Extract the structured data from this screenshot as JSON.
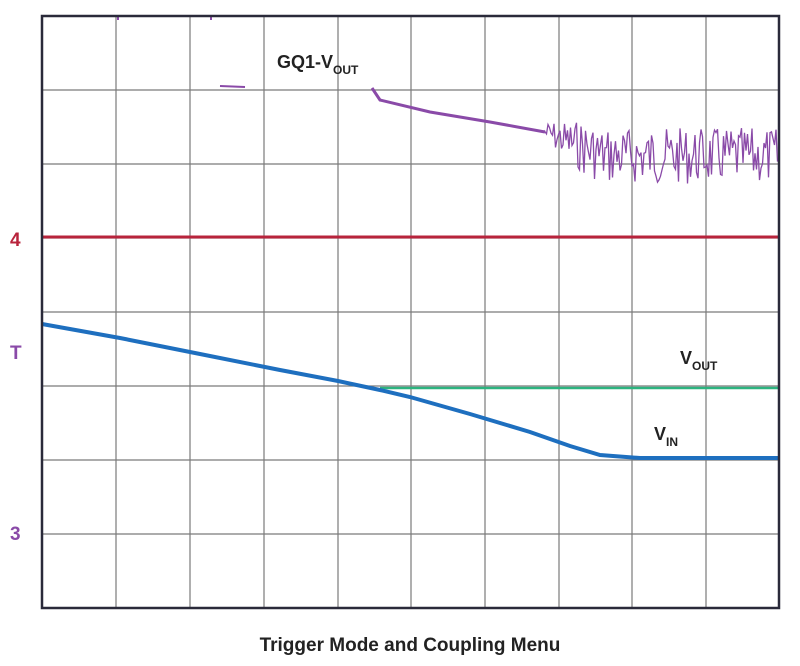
{
  "screen": {
    "markers": {
      "ch4": "4",
      "trigger": "T",
      "ch3": "3"
    },
    "labels": {
      "gq1": {
        "main": "GQ1-V",
        "sub": "OUT"
      },
      "vout": {
        "main": "V",
        "sub": "OUT"
      },
      "vin": {
        "main": "V",
        "sub": "IN"
      }
    }
  },
  "caption": "Trigger Mode and Coupling Menu"
}
